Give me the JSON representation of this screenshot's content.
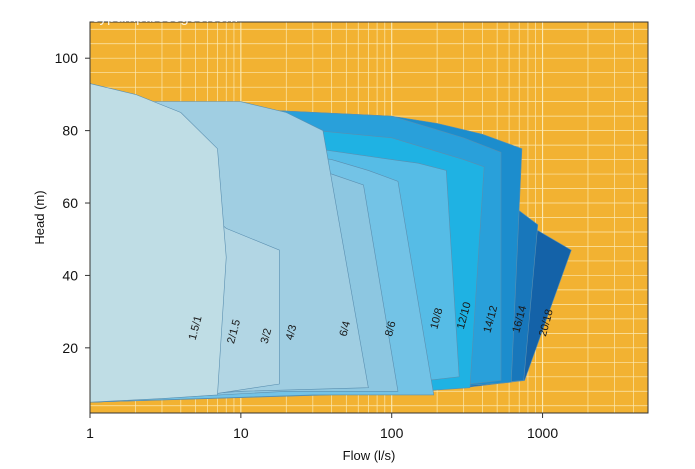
{
  "watermark": "sypump.bossgoo.com",
  "chart_data": {
    "type": "area",
    "xlabel": "Flow (l/s)",
    "ylabel": "Head (m)",
    "xscale": "log",
    "xlim": [
      1,
      5000
    ],
    "ylim": [
      2,
      110
    ],
    "xticks": [
      1,
      10,
      100,
      1000
    ],
    "xtick_labels": [
      "1",
      "10",
      "100",
      "1000"
    ],
    "yticks": [
      20,
      40,
      60,
      80,
      100
    ],
    "ytick_labels": [
      "20",
      "40",
      "60",
      "80",
      "100"
    ],
    "grid": true,
    "background_color": "#F2B232",
    "grid_color": "#FBE9B2",
    "series": [
      {
        "name": "20/18",
        "color": "#1462A8",
        "label_at": [
          1050,
          23
        ],
        "points": [
          [
            300,
            9
          ],
          [
            760,
            11
          ],
          [
            1550,
            47
          ],
          [
            800,
            54
          ],
          [
            300,
            62
          ],
          [
            100,
            72
          ],
          [
            1,
            85
          ]
        ]
      },
      {
        "name": "16/14",
        "color": "#1877BB",
        "label_at": [
          700,
          24
        ],
        "points": [
          [
            200,
            9
          ],
          [
            750,
            11
          ],
          [
            930,
            54
          ],
          [
            600,
            60
          ],
          [
            300,
            66
          ],
          [
            100,
            75
          ],
          [
            1,
            86
          ]
        ]
      },
      {
        "name": "14/12",
        "color": "#1C8DCD",
        "label_at": [
          450,
          24
        ],
        "points": [
          [
            150,
            8.5
          ],
          [
            620,
            10.5
          ],
          [
            730,
            75
          ],
          [
            400,
            79
          ],
          [
            200,
            82
          ],
          [
            100,
            84
          ],
          [
            1,
            88
          ]
        ]
      },
      {
        "name": "12/10",
        "color": "#29A0DA",
        "label_at": [
          300,
          25
        ],
        "points": [
          [
            120,
            8
          ],
          [
            530,
            11
          ],
          [
            530,
            74
          ],
          [
            300,
            78
          ],
          [
            100,
            84
          ],
          [
            1,
            88
          ]
        ]
      },
      {
        "name": "10/8",
        "color": "#1FB2E3",
        "label_at": [
          200,
          25
        ],
        "points": [
          [
            100,
            7.5
          ],
          [
            330,
            9
          ],
          [
            410,
            70
          ],
          [
            300,
            72
          ],
          [
            100,
            78
          ],
          [
            1,
            86
          ]
        ]
      },
      {
        "name": "8/6",
        "color": "#56BCE6",
        "label_at": [
          100,
          23
        ],
        "points": [
          [
            40,
            8
          ],
          [
            280,
            12
          ],
          [
            230,
            69
          ],
          [
            150,
            71
          ],
          [
            100,
            72
          ],
          [
            1,
            84
          ]
        ]
      },
      {
        "name": "6/4",
        "color": "#73C3E6",
        "label_at": [
          50,
          23
        ],
        "points": [
          [
            30,
            7
          ],
          [
            190,
            7
          ],
          [
            110,
            66
          ],
          [
            70,
            69
          ],
          [
            40,
            72
          ],
          [
            1,
            82
          ]
        ]
      },
      {
        "name": "4/3",
        "color": "#8DC7E1",
        "label_at": [
          22,
          22
        ],
        "points": [
          [
            20,
            8
          ],
          [
            110,
            8
          ],
          [
            65,
            65
          ],
          [
            40,
            68
          ],
          [
            25,
            70
          ],
          [
            1,
            80
          ]
        ]
      },
      {
        "name": "3/2",
        "color": "#A0CEE2",
        "label_at": [
          15,
          21
        ],
        "points": [
          [
            10,
            8
          ],
          [
            70,
            9
          ],
          [
            35,
            80
          ],
          [
            20,
            85
          ],
          [
            10,
            88
          ],
          [
            1,
            88
          ]
        ]
      },
      {
        "name": "2/1.5",
        "color": "#B2D6E4",
        "label_at": [
          9,
          21
        ],
        "points": [
          [
            6,
            7
          ],
          [
            18,
            10
          ],
          [
            18,
            47
          ],
          [
            12,
            50
          ],
          [
            8,
            53
          ],
          [
            1,
            85
          ]
        ]
      },
      {
        "name": "1.5/1",
        "color": "#BFDDE5",
        "label_at": [
          5,
          22
        ],
        "points": [
          [
            3,
            6
          ],
          [
            7,
            7
          ],
          [
            8,
            45
          ],
          [
            7,
            75
          ],
          [
            4,
            85
          ],
          [
            2,
            90
          ],
          [
            1,
            93
          ]
        ]
      }
    ]
  }
}
